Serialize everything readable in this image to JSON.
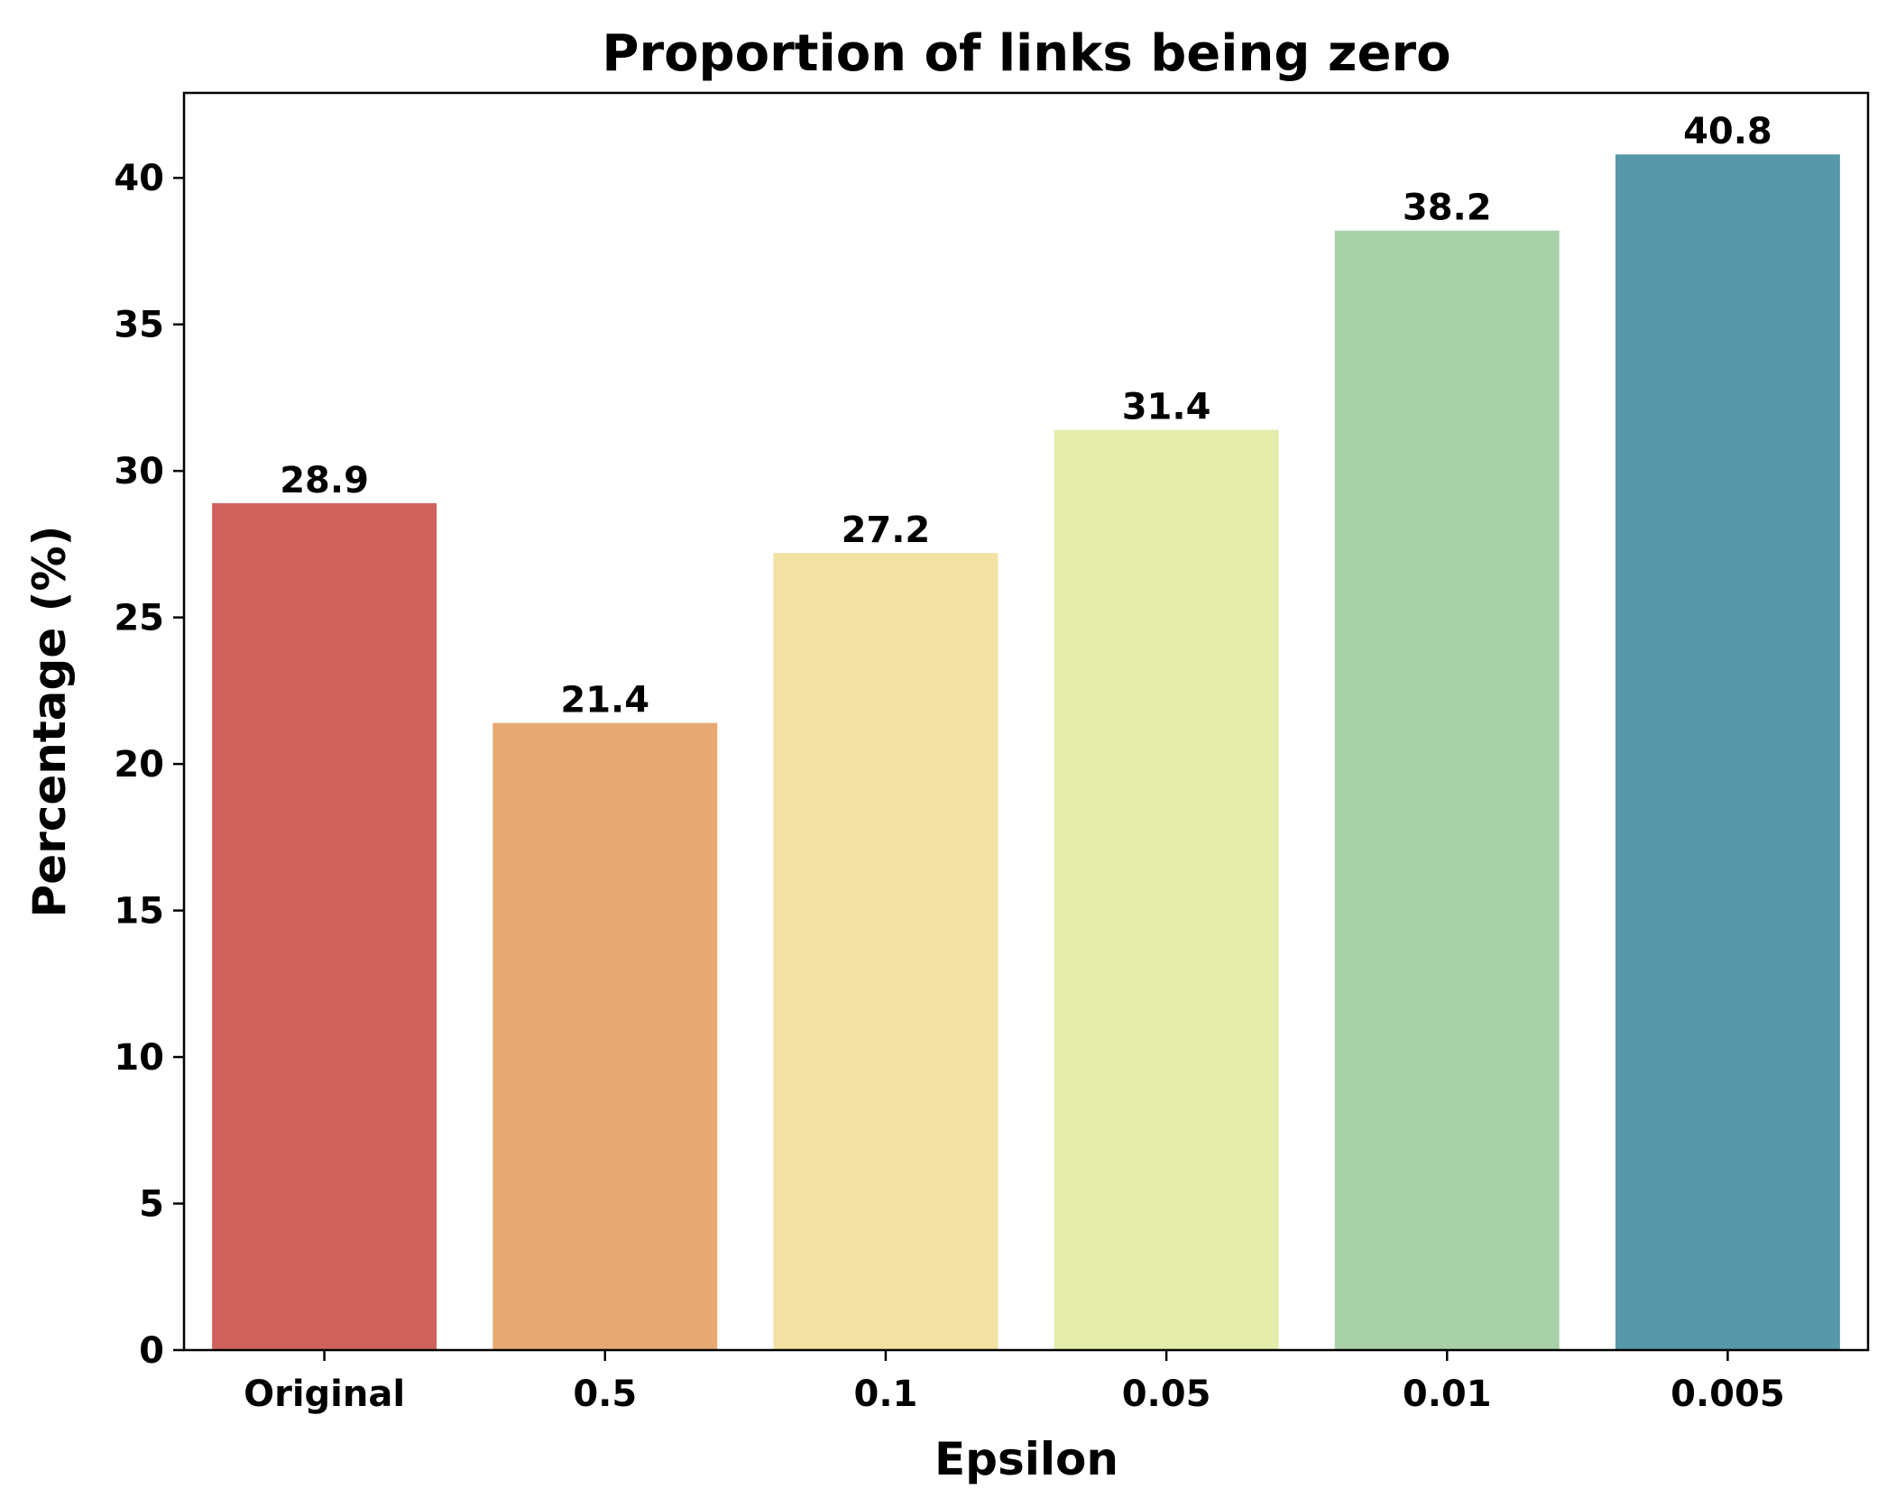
{
  "chart_data": {
    "type": "bar",
    "title": "Proportion of links being zero",
    "xlabel": "Epsilon",
    "ylabel": "Percentage (%)",
    "categories": [
      "Original",
      "0.5",
      "0.1",
      "0.05",
      "0.01",
      "0.005"
    ],
    "values": [
      28.9,
      21.4,
      27.2,
      31.4,
      38.2,
      40.8
    ],
    "value_labels": [
      "28.9",
      "21.4",
      "27.2",
      "31.4",
      "38.2",
      "40.8"
    ],
    "colors": [
      "#d0625d",
      "#e8a872",
      "#f3e0a3",
      "#e4edab",
      "#a8d1a8",
      "#5698a8"
    ],
    "ylim": [
      0,
      42.9
    ],
    "yticks": [
      0,
      5,
      10,
      15,
      20,
      25,
      30,
      35,
      40
    ],
    "ytick_labels": [
      "0",
      "5",
      "10",
      "15",
      "20",
      "25",
      "30",
      "35",
      "40"
    ],
    "grid": false,
    "legend": "none"
  }
}
